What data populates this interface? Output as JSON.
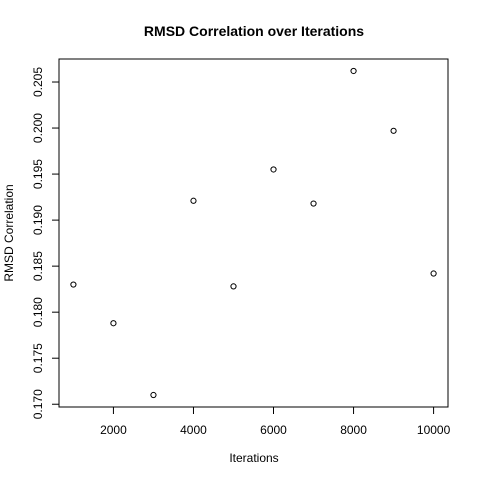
{
  "chart_data": {
    "type": "scatter",
    "title": "RMSD Correlation over Iterations",
    "xlabel": "Iterations",
    "ylabel": "RMSD Correlation",
    "x": [
      1000,
      2000,
      3000,
      4000,
      5000,
      6000,
      7000,
      8000,
      9000,
      10000
    ],
    "y": [
      0.183,
      0.1788,
      0.171,
      0.1921,
      0.1828,
      0.1955,
      0.1918,
      0.2062,
      0.1997,
      0.1842
    ],
    "xlim": [
      640,
      10360
    ],
    "ylim": [
      0.1697,
      0.2075
    ],
    "xticks": [
      2000,
      4000,
      6000,
      8000,
      10000
    ],
    "xtick_labels": [
      "2000",
      "4000",
      "6000",
      "8000",
      "10000"
    ],
    "yticks": [
      0.17,
      0.175,
      0.18,
      0.185,
      0.19,
      0.195,
      0.2,
      0.205
    ],
    "ytick_labels": [
      "0.170",
      "0.175",
      "0.180",
      "0.185",
      "0.190",
      "0.195",
      "0.200",
      "0.205"
    ],
    "grid": false,
    "marker": "open-circle",
    "colors": {
      "points": "#000000",
      "axes": "#000000",
      "background": "#ffffff"
    }
  }
}
